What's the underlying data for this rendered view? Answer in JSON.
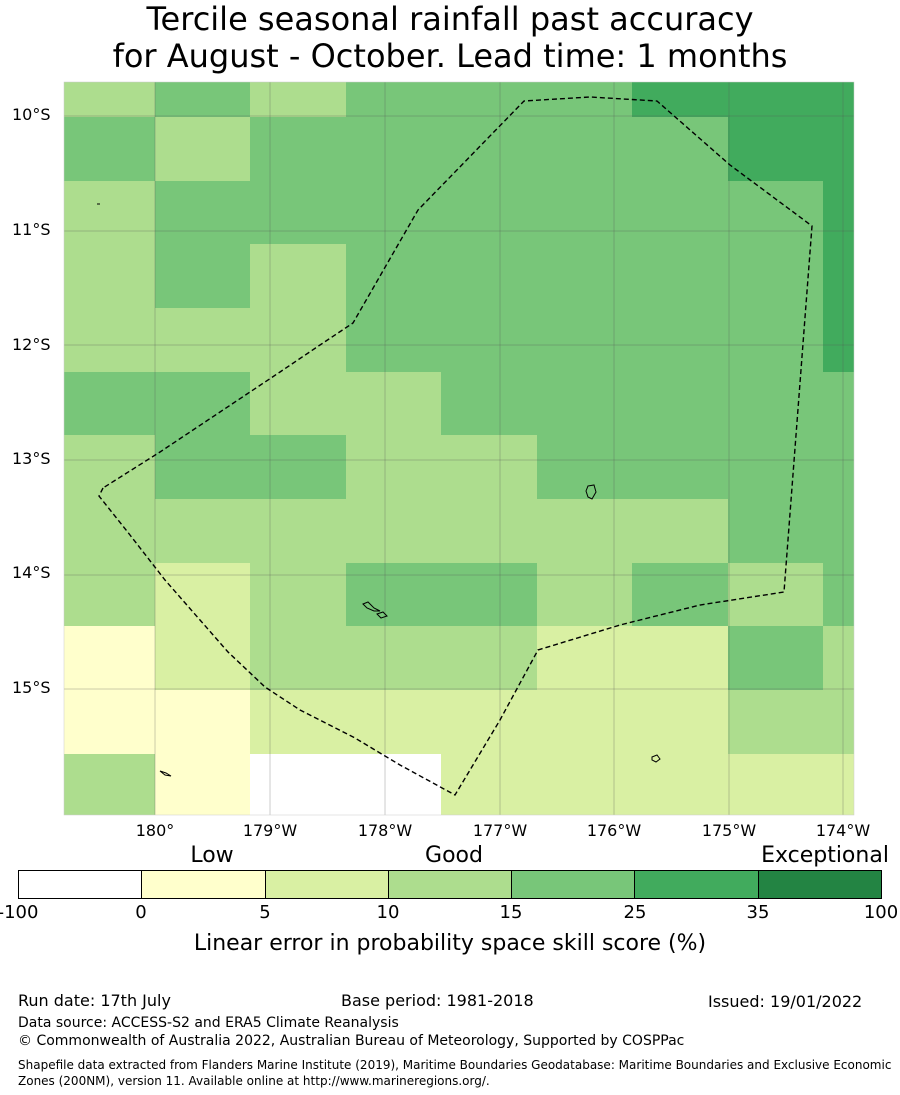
{
  "title": {
    "line1": "Tercile seasonal rainfall past accuracy",
    "line2": "for August - October. Lead time: 1 months"
  },
  "map": {
    "lat_labels": [
      "10°S",
      "11°S",
      "12°S",
      "13°S",
      "14°S",
      "15°S"
    ],
    "lon_labels": [
      "180°",
      "179°W",
      "178°W",
      "177°W",
      "176°W",
      "175°W",
      "174°W"
    ],
    "cell_classes": [
      [
        3,
        4,
        3,
        4,
        4,
        4,
        5,
        5,
        5
      ],
      [
        4,
        3,
        4,
        4,
        4,
        4,
        4,
        5,
        5
      ],
      [
        3,
        4,
        4,
        4,
        4,
        4,
        4,
        4,
        5
      ],
      [
        3,
        4,
        3,
        4,
        4,
        4,
        4,
        4,
        5
      ],
      [
        3,
        3,
        3,
        4,
        4,
        4,
        4,
        4,
        5
      ],
      [
        4,
        4,
        3,
        3,
        4,
        4,
        4,
        4,
        4
      ],
      [
        3,
        4,
        4,
        3,
        3,
        4,
        4,
        4,
        4
      ],
      [
        3,
        3,
        3,
        3,
        3,
        3,
        3,
        4,
        4
      ],
      [
        3,
        2,
        3,
        4,
        4,
        3,
        4,
        3,
        4
      ],
      [
        1,
        2,
        3,
        3,
        3,
        2,
        2,
        4,
        3
      ],
      [
        1,
        1,
        2,
        2,
        2,
        2,
        2,
        3,
        3
      ],
      [
        3,
        1,
        0,
        0,
        2,
        2,
        2,
        2,
        2
      ]
    ]
  },
  "legend": {
    "categories": [
      "Low",
      "Good",
      "Exceptional"
    ],
    "colors": [
      "#ffffff",
      "#ffffcc",
      "#d9f0a3",
      "#addd8e",
      "#78c679",
      "#41ab5d",
      "#238443"
    ],
    "ticks": [
      "-100",
      "0",
      "5",
      "10",
      "15",
      "25",
      "35",
      "100"
    ],
    "title": "Linear error in probability space skill score (%)"
  },
  "footer": {
    "run_date": "Run date: 17th July",
    "base_period": "Base period: 1981-2018",
    "issued": "Issued: 19/01/2022",
    "data_source": "Data source: ACCESS-S2 and ERA5 Climate Reanalysis",
    "copyright": "© Commonwealth of Australia 2022, Australian Bureau of Meteorology, Supported by COSPPac",
    "shapefile": "Shapefile data extracted from Flanders Marine Institute (2019), Maritime Boundaries Geodatabase: Maritime Boundaries and Exclusive Economic Zones (200NM), version 11. Available online at http://www.marineregions.org/."
  }
}
